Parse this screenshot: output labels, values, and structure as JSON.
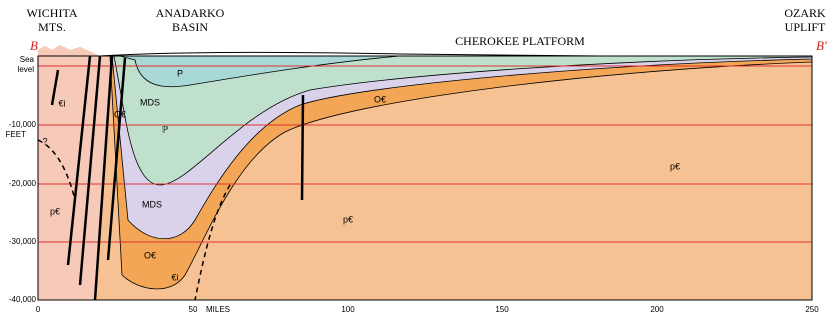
{
  "places": {
    "wichita": [
      "WICHITA",
      "MTS."
    ],
    "anadarko": [
      "ANADARKO",
      "BASIN"
    ],
    "cherokee": "CHEROKEE PLATFORM",
    "ozark": [
      "OZARK",
      "UPLIFT"
    ]
  },
  "section_ends": {
    "left": "B",
    "right": "B'"
  },
  "depth_axis": {
    "sea_level": [
      "Sea",
      "level"
    ],
    "ticks": [
      "-10,000",
      "-20,000",
      "-30,000",
      "-40,000"
    ],
    "unit": "FEET"
  },
  "distance_axis": {
    "ticks": [
      "0",
      "50",
      "100",
      "150",
      "200",
      "250"
    ],
    "unit": "MILES"
  },
  "units": {
    "permian": "P",
    "pennsylvanian": "ℙ",
    "mds": [
      "MDS",
      "MDS"
    ],
    "ordovician_cambrian": [
      "O€",
      "O€",
      "O€"
    ],
    "precambrian": [
      "p€",
      "p€",
      "p€"
    ],
    "cambrian_igneous": [
      "€i",
      "€i"
    ],
    "query": "?"
  }
}
